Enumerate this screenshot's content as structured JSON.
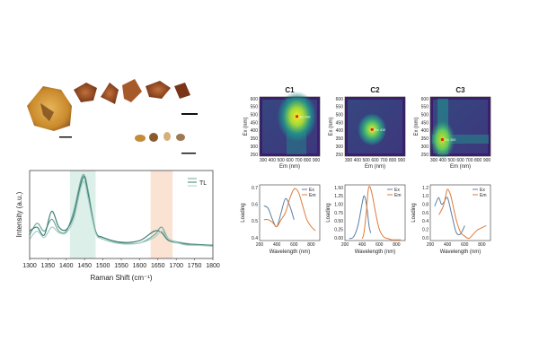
{
  "colors": {
    "ex": "#5b7fa6",
    "em": "#e07b39",
    "tl1": "#6fa89a",
    "tl2": "#3f7f76",
    "tl3": "#a7cec4",
    "band_green": "#dcefe9",
    "band_orange": "#fbe3d3",
    "viridis_dark": "#3b1f6e",
    "viridis_mid": "#21918c",
    "viridis_bright": "#fde725"
  },
  "raman": {
    "xlabel": "Raman Shift (cm⁻¹)",
    "ylabel": "Intensity (a.u.)",
    "legend_label": "TL",
    "xticks": [
      "1300",
      "1350",
      "1400",
      "1450",
      "1500",
      "1550",
      "1600",
      "1650",
      "1700",
      "1750",
      "1800"
    ]
  },
  "eem": {
    "panels": [
      {
        "title": "C1",
        "peak_label": "Ex: 490"
      },
      {
        "title": "C2",
        "peak_label": "Ex: 410"
      },
      {
        "title": "C3",
        "peak_label": "Ex: 300"
      }
    ],
    "ylabel": "Ex (nm)",
    "xlabel": "Em (nm)",
    "yticks": [
      "600",
      "550",
      "500",
      "450",
      "400",
      "350",
      "300",
      "250"
    ],
    "xticks": [
      "300",
      "400",
      "500",
      "600",
      "700",
      "800",
      "900"
    ]
  },
  "loading": {
    "ylabel": "Loading",
    "xlabel": "Wavelength (nm)",
    "legend": [
      "Ex",
      "Em"
    ],
    "xticks": [
      "200",
      "400",
      "600",
      "800"
    ],
    "panels": [
      {
        "yticks": [
          "0.7",
          "0.6",
          "0.5",
          "0.4"
        ]
      },
      {
        "yticks": [
          "1.50",
          "1.25",
          "1.00",
          "0.75",
          "0.50",
          "0.25",
          "0.00"
        ]
      },
      {
        "yticks": [
          "1.2",
          "1.0",
          "0.8",
          "0.6",
          "0.4",
          "0.2",
          "0.0"
        ]
      }
    ]
  },
  "chart_data": [
    {
      "type": "line",
      "xlabel": "Raman Shift (cm⁻¹)",
      "ylabel": "Intensity (a.u.)",
      "xlim": [
        1300,
        1800
      ],
      "highlight_bands": [
        [
          1410,
          1480
        ],
        [
          1630,
          1690
        ]
      ],
      "series": [
        {
          "name": "TL",
          "x": [
            1300,
            1320,
            1340,
            1360,
            1380,
            1400,
            1420,
            1440,
            1450,
            1460,
            1480,
            1500,
            1550,
            1600,
            1640,
            1660,
            1680,
            1720,
            1760,
            1800
          ],
          "values": [
            0.25,
            0.4,
            0.3,
            0.45,
            0.3,
            0.3,
            0.55,
            0.95,
            1.0,
            0.8,
            0.3,
            0.2,
            0.15,
            0.15,
            0.25,
            0.35,
            0.2,
            0.15,
            0.13,
            0.12
          ]
        },
        {
          "x": [
            1300,
            1320,
            1340,
            1360,
            1380,
            1400,
            1420,
            1440,
            1450,
            1460,
            1480,
            1500,
            1550,
            1600,
            1640,
            1660,
            1680,
            1720,
            1760,
            1800
          ],
          "values": [
            0.3,
            0.35,
            0.25,
            0.55,
            0.35,
            0.32,
            0.5,
            0.9,
            0.98,
            0.75,
            0.3,
            0.22,
            0.16,
            0.18,
            0.3,
            0.28,
            0.18,
            0.14,
            0.13,
            0.12
          ]
        },
        {
          "x": [
            1300,
            1320,
            1340,
            1360,
            1380,
            1400,
            1420,
            1440,
            1450,
            1460,
            1480,
            1500,
            1550,
            1600,
            1640,
            1660,
            1680,
            1720,
            1760,
            1800
          ],
          "values": [
            0.2,
            0.3,
            0.22,
            0.35,
            0.28,
            0.28,
            0.45,
            0.85,
            0.92,
            0.7,
            0.28,
            0.2,
            0.14,
            0.15,
            0.22,
            0.3,
            0.2,
            0.13,
            0.12,
            0.11
          ]
        }
      ]
    },
    {
      "type": "line",
      "title": "C1",
      "xlabel": "Wavelength (nm)",
      "ylabel": "Loading",
      "xlim": [
        200,
        900
      ],
      "ylim": [
        0.35,
        0.75
      ],
      "series": [
        {
          "name": "Ex",
          "x": [
            250,
            300,
            350,
            400,
            450,
            500,
            550,
            600
          ],
          "values": [
            0.6,
            0.58,
            0.5,
            0.45,
            0.55,
            0.65,
            0.6,
            0.5
          ]
        },
        {
          "name": "Em",
          "x": [
            250,
            300,
            350,
            400,
            450,
            500,
            550,
            600,
            650,
            700,
            750,
            800,
            850
          ],
          "values": [
            0.5,
            0.5,
            0.48,
            0.45,
            0.5,
            0.55,
            0.65,
            0.72,
            0.7,
            0.6,
            0.5,
            0.45,
            0.42
          ]
        }
      ]
    },
    {
      "type": "line",
      "title": "C2",
      "xlabel": "Wavelength (nm)",
      "ylabel": "Loading",
      "xlim": [
        200,
        900
      ],
      "ylim": [
        0,
        1.5
      ],
      "series": [
        {
          "name": "Ex",
          "x": [
            250,
            300,
            350,
            400,
            420,
            440,
            460,
            480,
            500
          ],
          "values": [
            0.05,
            0.1,
            0.4,
            1.0,
            1.2,
            1.1,
            0.8,
            0.4,
            0.2
          ]
        },
        {
          "name": "Em",
          "x": [
            400,
            420,
            450,
            470,
            490,
            520,
            560,
            600,
            650,
            700,
            750,
            800,
            850
          ],
          "values": [
            0.05,
            0.2,
            0.8,
            1.35,
            1.45,
            1.2,
            0.7,
            0.3,
            0.1,
            0.05,
            0.02,
            0.02,
            0.02
          ]
        }
      ]
    },
    {
      "type": "line",
      "title": "C3",
      "xlabel": "Wavelength (nm)",
      "ylabel": "Loading",
      "xlim": [
        200,
        900
      ],
      "ylim": [
        0,
        1.3
      ],
      "series": [
        {
          "name": "Ex",
          "x": [
            250,
            280,
            300,
            330,
            360,
            400,
            450,
            500,
            550,
            600
          ],
          "values": [
            0.8,
            0.95,
            1.0,
            0.85,
            0.9,
            1.0,
            0.6,
            0.2,
            0.15,
            0.35
          ]
        },
        {
          "name": "Em",
          "x": [
            300,
            350,
            380,
            400,
            430,
            450,
            500,
            550,
            600,
            650,
            700,
            750,
            800,
            850
          ],
          "values": [
            0.6,
            0.8,
            1.05,
            1.2,
            1.1,
            0.95,
            0.5,
            0.2,
            0.1,
            0.05,
            0.15,
            0.25,
            0.3,
            0.35
          ]
        }
      ]
    }
  ]
}
